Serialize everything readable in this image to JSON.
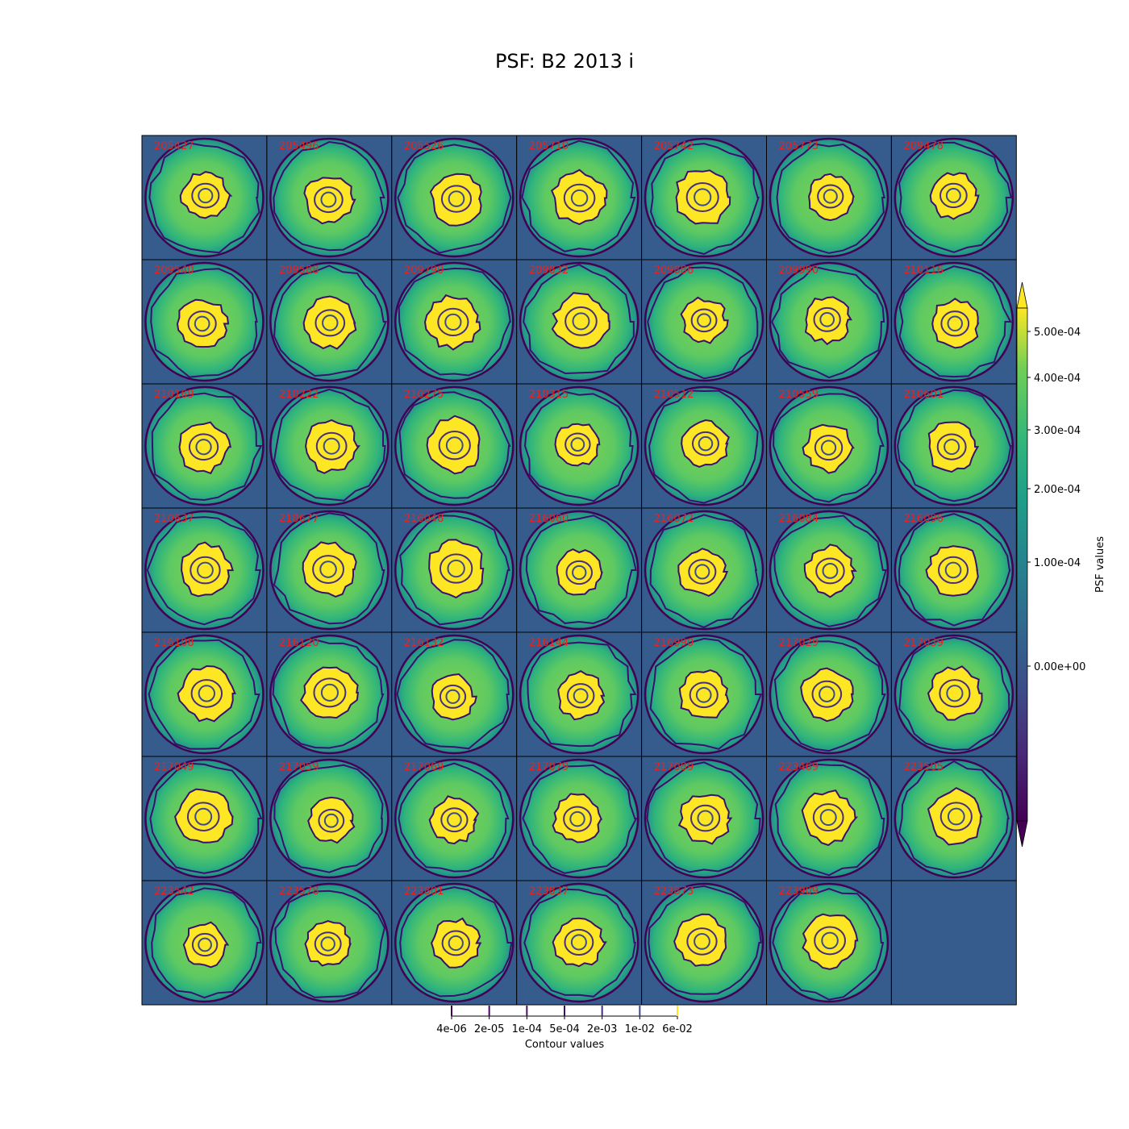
{
  "title": "PSF: B2 2013 i",
  "chart_data": {
    "type": "heatmap",
    "title": "PSF: B2 2013 i",
    "grid": {
      "rows": 7,
      "cols": 7
    },
    "panels": [
      "205427",
      "205496",
      "205526",
      "205710",
      "205742",
      "205773",
      "209478",
      "209540",
      "209588",
      "209790",
      "209832",
      "209886",
      "209990",
      "210116",
      "210169",
      "210222",
      "210275",
      "210315",
      "210512",
      "210559",
      "210601",
      "210637",
      "210677",
      "216048",
      "216060",
      "216072",
      "216084",
      "216096",
      "216108",
      "216120",
      "216132",
      "216144",
      "216990",
      "217029",
      "217039",
      "217049",
      "217059",
      "217069",
      "217079",
      "217089",
      "223469",
      "223505",
      "223542",
      "223578",
      "223801",
      "223837",
      "223873",
      "223909"
    ],
    "colorbar": {
      "label": "PSF values",
      "ticks": [
        "5.00e-04",
        "4.00e-04",
        "3.00e-04",
        "2.00e-04",
        "1.00e-04",
        "0.00e+00"
      ],
      "tick_values": [
        0.0005,
        0.0004,
        0.0003,
        0.0002,
        0.0001,
        0.0
      ],
      "extend": "both",
      "colormap": "viridis"
    },
    "contour_legend": {
      "label": "Contour values",
      "levels": [
        "4e-06",
        "2e-05",
        "1e-04",
        "5e-04",
        "2e-03",
        "1e-02",
        "6e-02"
      ]
    },
    "background_color": "#365c8d",
    "label_color": "#e8231f"
  }
}
